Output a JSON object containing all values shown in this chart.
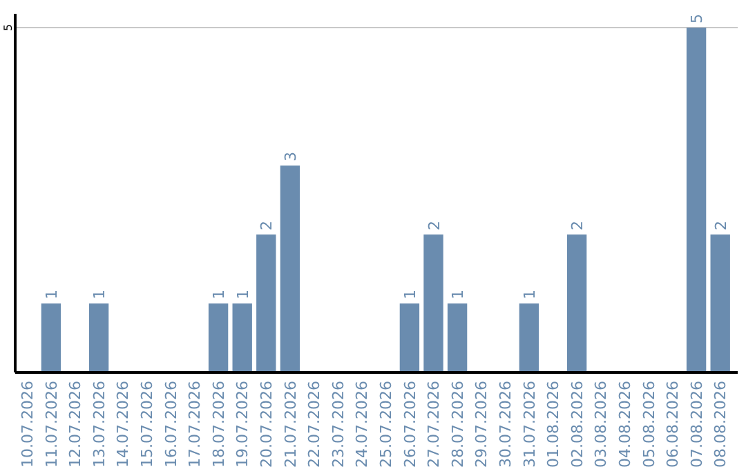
{
  "chart_data": {
    "type": "bar",
    "categories": [
      "10.07.2026",
      "11.07.2026",
      "12.07.2026",
      "13.07.2026",
      "14.07.2026",
      "15.07.2026",
      "16.07.2026",
      "17.07.2026",
      "18.07.2026",
      "19.07.2026",
      "20.07.2026",
      "21.07.2026",
      "22.07.2026",
      "23.07.2026",
      "24.07.2026",
      "25.07.2026",
      "26.07.2026",
      "27.07.2026",
      "28.07.2026",
      "29.07.2026",
      "30.07.2026",
      "31.07.2026",
      "01.08.2026",
      "02.08.2026",
      "03.08.2026",
      "04.08.2026",
      "05.08.2026",
      "06.08.2026",
      "07.08.2026",
      "08.08.2026"
    ],
    "values": [
      0,
      1,
      0,
      1,
      0,
      0,
      0,
      0,
      1,
      1,
      2,
      3,
      0,
      0,
      0,
      0,
      1,
      2,
      1,
      0,
      0,
      1,
      0,
      2,
      0,
      0,
      0,
      0,
      5,
      2
    ],
    "value_labels": [
      null,
      "1",
      null,
      "1",
      null,
      null,
      null,
      null,
      "1",
      "1",
      "2",
      "3",
      null,
      null,
      null,
      null,
      "1",
      "2",
      "1",
      null,
      null,
      "1",
      null,
      "2",
      null,
      null,
      null,
      null,
      "5",
      "2"
    ],
    "color": "#6a8caf",
    "ylim": [
      0,
      5.2
    ],
    "yticks": [
      5
    ],
    "grid": "y"
  }
}
